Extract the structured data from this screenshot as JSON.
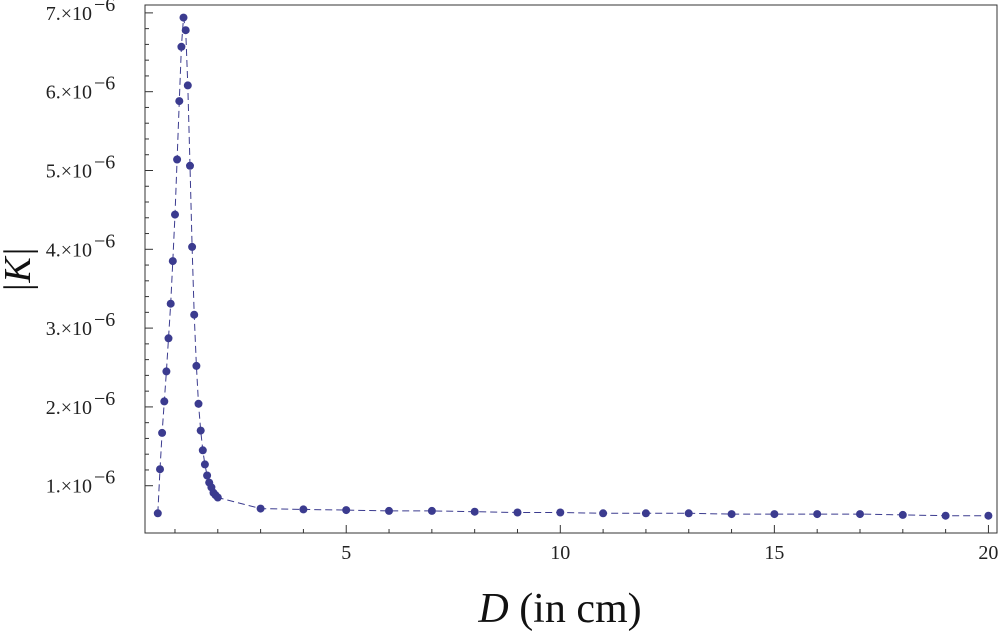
{
  "chart_data": {
    "type": "scatter",
    "xlabel": {
      "var": "D",
      "rest": " (in cm)"
    },
    "ylabel": "|K|",
    "xlim": [
      0.3,
      20.2
    ],
    "ylim": [
      4e-07,
      7.1e-06
    ],
    "grid": false,
    "x_ticks": [
      {
        "value": 5,
        "label": "5"
      },
      {
        "value": 10,
        "label": "10"
      },
      {
        "value": 15,
        "label": "15"
      },
      {
        "value": 20,
        "label": "20"
      }
    ],
    "y_ticks": [
      {
        "value": 1e-06,
        "mantissa": "1.",
        "exp": "−6"
      },
      {
        "value": 2e-06,
        "mantissa": "2.",
        "exp": "−6"
      },
      {
        "value": 3e-06,
        "mantissa": "3.",
        "exp": "−6"
      },
      {
        "value": 4e-06,
        "mantissa": "4.",
        "exp": "−6"
      },
      {
        "value": 5e-06,
        "mantissa": "5.",
        "exp": "−6"
      },
      {
        "value": 6e-06,
        "mantissa": "6.",
        "exp": "−6"
      },
      {
        "value": 7e-06,
        "mantissa": "7.",
        "exp": "−6"
      }
    ],
    "series": [
      {
        "color": "#3b3b8f",
        "line_style": "dashed",
        "points": [
          [
            0.6,
            6.5e-07
          ],
          [
            0.65,
            1.21e-06
          ],
          [
            0.7,
            1.67e-06
          ],
          [
            0.75,
            2.07e-06
          ],
          [
            0.8,
            2.45e-06
          ],
          [
            0.85,
            2.87e-06
          ],
          [
            0.9,
            3.31e-06
          ],
          [
            0.95,
            3.85e-06
          ],
          [
            1.0,
            4.44e-06
          ],
          [
            1.05,
            5.14e-06
          ],
          [
            1.1,
            5.88e-06
          ],
          [
            1.15,
            6.57e-06
          ],
          [
            1.2,
            6.94e-06
          ],
          [
            1.25,
            6.78e-06
          ],
          [
            1.3,
            6.08e-06
          ],
          [
            1.35,
            5.06e-06
          ],
          [
            1.4,
            4.03e-06
          ],
          [
            1.45,
            3.17e-06
          ],
          [
            1.5,
            2.52e-06
          ],
          [
            1.55,
            2.04e-06
          ],
          [
            1.6,
            1.7e-06
          ],
          [
            1.65,
            1.45e-06
          ],
          [
            1.7,
            1.27e-06
          ],
          [
            1.75,
            1.13e-06
          ],
          [
            1.8,
            1.04e-06
          ],
          [
            1.85,
            9.8e-07
          ],
          [
            1.9,
            9.1e-07
          ],
          [
            1.95,
            8.8e-07
          ],
          [
            2.0,
            8.5e-07
          ],
          [
            3,
            7.1e-07
          ],
          [
            4,
            7e-07
          ],
          [
            5,
            6.9e-07
          ],
          [
            6,
            6.8e-07
          ],
          [
            7,
            6.8e-07
          ],
          [
            8,
            6.7e-07
          ],
          [
            9,
            6.6e-07
          ],
          [
            10,
            6.6e-07
          ],
          [
            11,
            6.5e-07
          ],
          [
            12,
            6.5e-07
          ],
          [
            13,
            6.5e-07
          ],
          [
            14,
            6.4e-07
          ],
          [
            15,
            6.4e-07
          ],
          [
            16,
            6.4e-07
          ],
          [
            17,
            6.4e-07
          ],
          [
            18,
            6.3e-07
          ],
          [
            19,
            6.2e-07
          ],
          [
            20,
            6.2e-07
          ]
        ]
      }
    ]
  }
}
